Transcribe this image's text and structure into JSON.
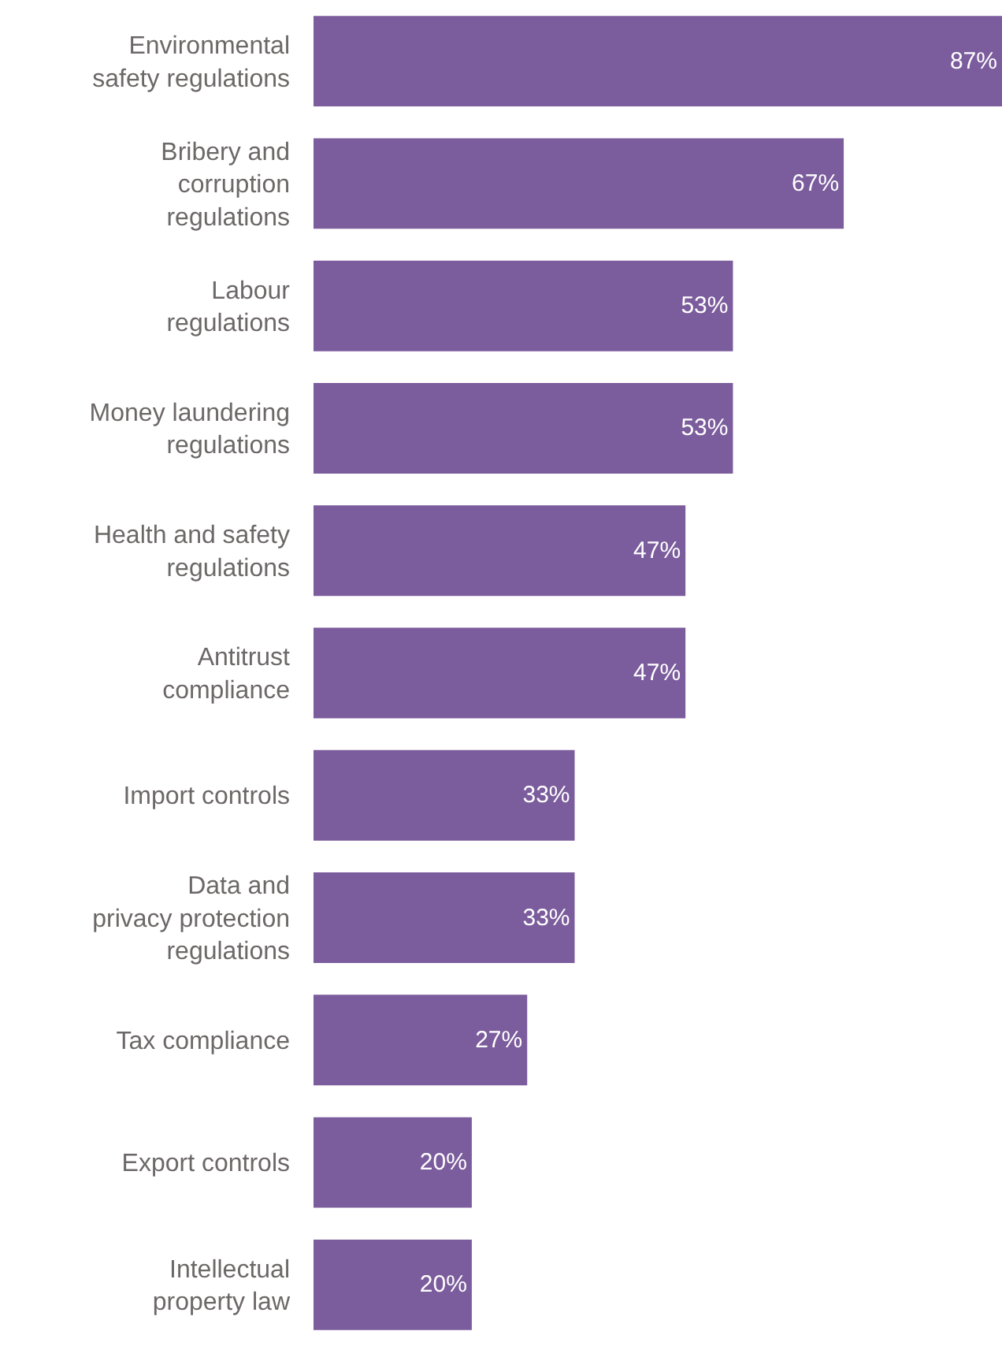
{
  "chart_data": {
    "type": "bar",
    "orientation": "horizontal",
    "categories": [
      "Environmental\nsafety regulations",
      "Bribery and\ncorruption\nregulations",
      "Labour\nregulations",
      "Money laundering\nregulations",
      "Health and safety\nregulations",
      "Antitrust\ncompliance",
      "Import controls",
      "Data and\nprivacy protection\nregulations",
      "Tax compliance",
      "Export controls",
      "Intellectual\nproperty law"
    ],
    "values": [
      87,
      67,
      53,
      53,
      47,
      47,
      33,
      33,
      27,
      20,
      20
    ],
    "value_labels": [
      "87%",
      "67%",
      "53%",
      "53%",
      "47%",
      "47%",
      "33%",
      "33%",
      "27%",
      "20%",
      "20%"
    ],
    "color": "#7b5c9c"
  }
}
